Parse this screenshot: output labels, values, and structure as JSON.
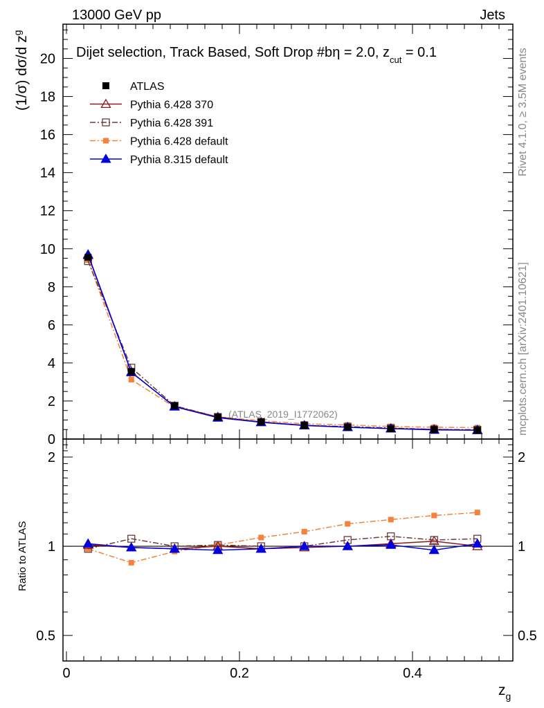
{
  "header": {
    "left": "13000 GeV pp",
    "right": "Jets"
  },
  "side_labels": {
    "rivet": "Rivet 4.1.0, ≥ 3.5M events",
    "mcplots": "mcplots.cern.ch [arXiv:2401.10621]"
  },
  "chart_data": {
    "type": "line",
    "title": "Dijet selection, Track Based, Soft Drop #b",
    "title_suffix": {
      "eta_part": "η = 2.0, z",
      "cut_sub": "cut",
      "value_part": " = 0.1"
    },
    "analysis_label": "(ATLAS_2019_I1772062)",
    "xlabel": "z",
    "xlabel_sub": "g",
    "ylabel": "(1/σ) dσ/d z",
    "ylabel_sub": "g",
    "ratio_ylabel": "Ratio to ATLAS",
    "xlim": [
      -0.004,
      0.516
    ],
    "ylim_main": [
      0,
      21.8
    ],
    "ylim_ratio": [
      0.41,
      2.3
    ],
    "x_ticks": [
      0,
      0.2,
      0.4
    ],
    "x_tick_labels": [
      "0",
      "0.2",
      "0.4"
    ],
    "y_ticks_main": [
      0,
      2,
      4,
      6,
      8,
      10,
      12,
      14,
      16,
      18,
      20
    ],
    "y_tick_labels_main": [
      "0",
      "2",
      "4",
      "6",
      "8",
      "10",
      "12",
      "14",
      "16",
      "18",
      "20"
    ],
    "y_ticks_ratio": [
      0.5,
      1,
      2
    ],
    "y_tick_labels_ratio": [
      "0.5",
      "1",
      "2"
    ],
    "x": [
      0.025,
      0.075,
      0.125,
      0.175,
      0.225,
      0.275,
      0.325,
      0.375,
      0.425,
      0.475
    ],
    "series": [
      {
        "name": "ATLAS",
        "color": "#000000",
        "marker": "filled-square",
        "line": "none",
        "values": [
          9.55,
          3.55,
          1.75,
          1.15,
          0.9,
          0.72,
          0.62,
          0.54,
          0.49,
          0.46
        ]
      },
      {
        "name": "Pythia 6.428 370",
        "color": "#8b1a1a",
        "marker": "open-triangle",
        "line": "solid",
        "values": [
          9.65,
          3.5,
          1.72,
          1.16,
          0.88,
          0.71,
          0.62,
          0.55,
          0.51,
          0.46
        ],
        "ratio": [
          1.01,
          0.99,
          0.98,
          1.0,
          0.98,
          0.99,
          1.0,
          1.02,
          1.04,
          1.0
        ]
      },
      {
        "name": "Pythia 6.428 391",
        "color": "#6b3a3a",
        "marker": "open-square",
        "line": "dashdot",
        "values": [
          9.35,
          3.75,
          1.75,
          1.16,
          0.9,
          0.72,
          0.65,
          0.58,
          0.51,
          0.49
        ],
        "ratio": [
          0.98,
          1.06,
          1.0,
          1.01,
          1.0,
          1.0,
          1.05,
          1.08,
          1.05,
          1.06
        ]
      },
      {
        "name": "Pythia 6.428 default",
        "color": "#f5813a",
        "marker": "filled-small-square",
        "line": "dashdot",
        "values": [
          9.4,
          3.12,
          1.68,
          1.17,
          0.96,
          0.8,
          0.74,
          0.66,
          0.62,
          0.6
        ],
        "ratio": [
          0.98,
          0.88,
          0.96,
          1.01,
          1.07,
          1.12,
          1.19,
          1.23,
          1.27,
          1.3
        ]
      },
      {
        "name": "Pythia 8.315 default",
        "color": "#0000e0",
        "marker": "filled-triangle",
        "line": "solid",
        "values": [
          9.7,
          3.52,
          1.7,
          1.12,
          0.88,
          0.72,
          0.62,
          0.55,
          0.48,
          0.47
        ],
        "ratio": [
          1.02,
          0.99,
          0.98,
          0.97,
          0.98,
          1.0,
          1.0,
          1.01,
          0.97,
          1.02
        ]
      }
    ]
  }
}
